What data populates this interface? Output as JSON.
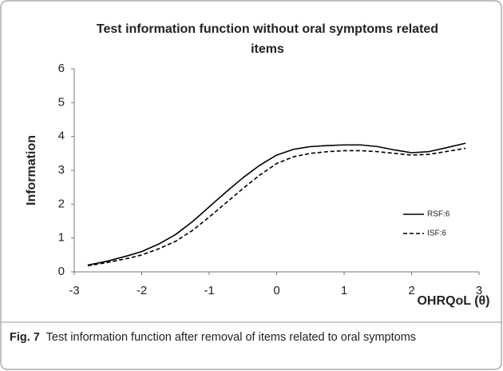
{
  "chart_data": {
    "type": "line",
    "title": "Test information function without oral symptoms related items",
    "x_label": "OHRQoL (θ)",
    "y_label": "Information",
    "x": [
      -2.8,
      -2.5,
      -2.2,
      -2,
      -1.75,
      -1.5,
      -1.25,
      -1,
      -0.75,
      -0.5,
      -0.25,
      0,
      0.25,
      0.5,
      0.75,
      1,
      1.25,
      1.5,
      1.75,
      2,
      2.25,
      2.5,
      2.8
    ],
    "series": [
      {
        "name": "RSF:6",
        "color": "#000000",
        "style": "solid",
        "values": [
          0.2,
          0.32,
          0.48,
          0.6,
          0.82,
          1.1,
          1.48,
          1.92,
          2.36,
          2.78,
          3.15,
          3.45,
          3.62,
          3.7,
          3.73,
          3.75,
          3.75,
          3.7,
          3.6,
          3.52,
          3.55,
          3.66,
          3.8
        ]
      },
      {
        "name": "ISF:6",
        "color": "#000000",
        "style": "dashed",
        "values": [
          0.18,
          0.28,
          0.4,
          0.5,
          0.68,
          0.9,
          1.22,
          1.62,
          2.04,
          2.46,
          2.86,
          3.2,
          3.4,
          3.5,
          3.55,
          3.58,
          3.58,
          3.55,
          3.5,
          3.45,
          3.47,
          3.55,
          3.65
        ]
      }
    ],
    "xlim": [
      -3,
      3
    ],
    "xticks": [
      -3,
      -2,
      -1,
      0,
      1,
      2,
      3
    ],
    "ylim": [
      0,
      6
    ],
    "yticks": [
      0,
      1,
      2,
      3,
      4,
      5,
      6
    ],
    "grid": false,
    "legend": "right"
  },
  "caption": {
    "label": "Fig. 7",
    "text": "Test information function after removal of items related to oral symptoms"
  }
}
